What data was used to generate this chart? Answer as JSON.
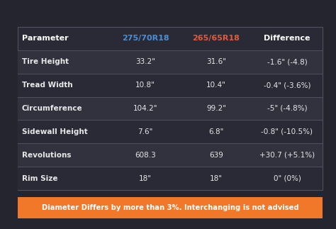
{
  "bg_color": "#252530",
  "col_headers": [
    "Parameter",
    "275/70R18",
    "265/65R18",
    "Difference"
  ],
  "col_header_colors": [
    "#ffffff",
    "#4a90d9",
    "#e05c3a",
    "#ffffff"
  ],
  "rows": [
    [
      "Tire Height",
      "33.2\"",
      "31.6\"",
      "-1.6\" (-4.8)"
    ],
    [
      "Tread Width",
      "10.8\"",
      "10.4\"",
      "-0.4\" (-3.6%)"
    ],
    [
      "Circumference",
      "104.2\"",
      "99.2\"",
      "-5\" (-4.8%)"
    ],
    [
      "Sidewall Height",
      "7.6\"",
      "6.8\"",
      "-0.8\" (-10.5%)"
    ],
    [
      "Revolutions",
      "608.3",
      "639",
      "+30.7 (+5.1%)"
    ],
    [
      "Rim Size",
      "18\"",
      "18\"",
      "0\" (0%)"
    ]
  ],
  "row_bg_colors": [
    "#32323e",
    "#2a2a36"
  ],
  "text_color": "#e8e8e8",
  "header_row_bg": "#2a2a36",
  "divider_color": "#505060",
  "warning_text": "Diameter Differs by more than 3%. Interchanging is not advised",
  "warning_bg": "#f07828",
  "warning_text_color": "#ffffff",
  "fig_width": 4.74,
  "fig_height": 3.23,
  "dpi": 100
}
